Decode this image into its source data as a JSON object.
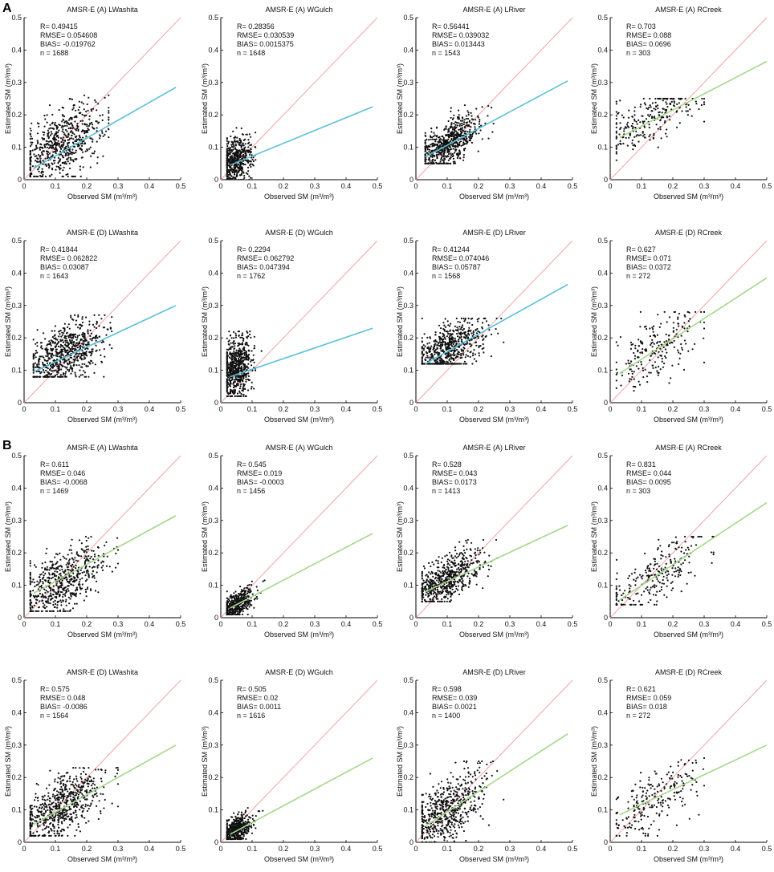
{
  "figure": {
    "panel_labels": [
      "A",
      "B"
    ],
    "colors": {
      "one_to_one": "#f2a3a3",
      "fit_cyan": "#5bc0d8",
      "fit_green": "#a5d78a",
      "points": "#111111"
    }
  },
  "chart_data": [
    {
      "type": "scatter",
      "group": "A",
      "title": "AMSR-E (A) LWashita",
      "xlabel": "Observed SM (m³/m³)",
      "ylabel": "Estimated SM (m³/m³)",
      "xlim": [
        0,
        0.5
      ],
      "ylim": [
        0,
        0.5
      ],
      "xticks": [
        "0",
        "0.1",
        "0.2",
        "0.3",
        "0.4",
        "0.5"
      ],
      "yticks": [
        "0",
        "0.1",
        "0.2",
        "0.3",
        "0.4",
        "0.5"
      ],
      "stats": [
        "R= 0.49415",
        "RMSE= 0.054608",
        "BIAS= -0.019762",
        "n = 1688"
      ],
      "fit_line": [
        [
          0.03,
          0.035
        ],
        [
          0.485,
          0.285
        ]
      ],
      "fit_color": "cyan",
      "cloud": {
        "x_center": 0.12,
        "x_spread": 0.07,
        "x_min": 0.02,
        "x_max": 0.27,
        "y_center": 0.11,
        "y_spread": 0.05,
        "y_min": 0.01,
        "y_max": 0.28,
        "slope": 0.45,
        "count": 650
      }
    },
    {
      "type": "scatter",
      "group": "A",
      "title": "AMSR-E (A) WGulch",
      "xlabel": "Observed SM (m³/m³)",
      "ylabel": "Estimated SM (m³/m³)",
      "xlim": [
        0,
        0.5
      ],
      "ylim": [
        0,
        0.5
      ],
      "xticks": [
        "0",
        "0.1",
        "0.2",
        "0.3",
        "0.4",
        "0.5"
      ],
      "yticks": [
        "0",
        "0.1",
        "0.2",
        "0.3",
        "0.4",
        "0.5"
      ],
      "stats": [
        "R= 0.28356",
        "RMSE= 0.030539",
        "BIAS= 0.0015375",
        "n = 1648"
      ],
      "fit_line": [
        [
          0.03,
          0.045
        ],
        [
          0.485,
          0.225
        ]
      ],
      "fit_color": "cyan",
      "cloud": {
        "x_center": 0.05,
        "x_spread": 0.025,
        "x_min": 0.02,
        "x_max": 0.12,
        "y_center": 0.06,
        "y_spread": 0.035,
        "y_min": 0.0,
        "y_max": 0.16,
        "slope": 0.3,
        "count": 500
      }
    },
    {
      "type": "scatter",
      "group": "A",
      "title": "AMSR-E (A) LRiver",
      "xlabel": "Observed SM (m³/m³)",
      "ylabel": "Estimated SM (m³/m³)",
      "xlim": [
        0,
        0.5
      ],
      "ylim": [
        0,
        0.5
      ],
      "xticks": [
        "0",
        "0.1",
        "0.2",
        "0.3",
        "0.4",
        "0.5"
      ],
      "yticks": [
        "0",
        "0.1",
        "0.2",
        "0.3",
        "0.4",
        "0.5"
      ],
      "stats": [
        "R= 0.56441",
        "RMSE= 0.039032",
        "BIAS= 0.013443",
        "n = 1543"
      ],
      "fit_line": [
        [
          0.03,
          0.07
        ],
        [
          0.485,
          0.305
        ]
      ],
      "fit_color": "cyan",
      "cloud": {
        "x_center": 0.1,
        "x_spread": 0.05,
        "x_min": 0.03,
        "x_max": 0.25,
        "y_center": 0.11,
        "y_spread": 0.035,
        "y_min": 0.05,
        "y_max": 0.25,
        "slope": 0.5,
        "count": 650
      }
    },
    {
      "type": "scatter",
      "group": "A",
      "title": "AMSR-E (A) RCreek",
      "xlabel": "Observed SM (m³/m³)",
      "ylabel": "Estimated SM (m³/m³)",
      "xlim": [
        0,
        0.5
      ],
      "ylim": [
        0,
        0.5
      ],
      "xticks": [
        "0",
        "0.1",
        "0.2",
        "0.3",
        "0.4",
        "0.5"
      ],
      "yticks": [
        "0",
        "0.1",
        "0.2",
        "0.3",
        "0.4",
        "0.5"
      ],
      "stats": [
        "R= 0.703",
        "RMSE= 0.088",
        "BIAS= 0.0696",
        "n = 303"
      ],
      "fit_line": [
        [
          0.03,
          0.13
        ],
        [
          0.5,
          0.365
        ]
      ],
      "fit_color": "green",
      "cloud": {
        "x_center": 0.13,
        "x_spread": 0.08,
        "x_min": 0.02,
        "x_max": 0.3,
        "y_center": 0.19,
        "y_spread": 0.04,
        "y_min": 0.06,
        "y_max": 0.25,
        "slope": 0.5,
        "count": 250
      }
    },
    {
      "type": "scatter",
      "group": "A",
      "title": "AMSR-E (D) LWashita",
      "xlabel": "Observed SM (m³/m³)",
      "ylabel": "Estimated SM (m³/m³)",
      "xlim": [
        0,
        0.5
      ],
      "ylim": [
        0,
        0.5
      ],
      "xticks": [
        "0",
        "0.1",
        "0.2",
        "0.3",
        "0.4",
        "0.5"
      ],
      "yticks": [
        "0",
        "0.1",
        "0.2",
        "0.3",
        "0.4",
        "0.5"
      ],
      "stats": [
        "R= 0.41844",
        "RMSE= 0.062822",
        "BIAS= 0.03087",
        "n = 1643"
      ],
      "fit_line": [
        [
          0.03,
          0.095
        ],
        [
          0.485,
          0.3
        ]
      ],
      "fit_color": "cyan",
      "cloud": {
        "x_center": 0.13,
        "x_spread": 0.065,
        "x_min": 0.03,
        "x_max": 0.28,
        "y_center": 0.15,
        "y_spread": 0.045,
        "y_min": 0.08,
        "y_max": 0.27,
        "slope": 0.45,
        "count": 700
      }
    },
    {
      "type": "scatter",
      "group": "A",
      "title": "AMSR-E (D) WGulch",
      "xlabel": "Observed SM (m³/m³)",
      "ylabel": "Estimated SM (m³/m³)",
      "xlim": [
        0,
        0.5
      ],
      "ylim": [
        0,
        0.5
      ],
      "xticks": [
        "0",
        "0.1",
        "0.2",
        "0.3",
        "0.4",
        "0.5"
      ],
      "yticks": [
        "0",
        "0.1",
        "0.2",
        "0.3",
        "0.4",
        "0.5"
      ],
      "stats": [
        "R= 0.2294",
        "RMSE= 0.062792",
        "BIAS= 0.047394",
        "n = 1762"
      ],
      "fit_line": [
        [
          0.03,
          0.08
        ],
        [
          0.485,
          0.23
        ]
      ],
      "fit_color": "cyan",
      "cloud": {
        "x_center": 0.05,
        "x_spread": 0.025,
        "x_min": 0.02,
        "x_max": 0.13,
        "y_center": 0.11,
        "y_spread": 0.045,
        "y_min": 0.02,
        "y_max": 0.22,
        "slope": 0.3,
        "count": 650
      }
    },
    {
      "type": "scatter",
      "group": "A",
      "title": "AMSR-E (D) LRiver",
      "xlabel": "Observed SM (m³/m³)",
      "ylabel": "Estimated SM (m³/m³)",
      "xlim": [
        0,
        0.5
      ],
      "ylim": [
        0,
        0.5
      ],
      "xticks": [
        "0",
        "0.1",
        "0.2",
        "0.3",
        "0.4",
        "0.5"
      ],
      "yticks": [
        "0",
        "0.1",
        "0.2",
        "0.3",
        "0.4",
        "0.5"
      ],
      "stats": [
        "R= 0.41244",
        "RMSE= 0.074046",
        "BIAS= 0.05787",
        "n = 1568"
      ],
      "fit_line": [
        [
          0.03,
          0.12
        ],
        [
          0.485,
          0.365
        ]
      ],
      "fit_color": "cyan",
      "cloud": {
        "x_center": 0.1,
        "x_spread": 0.06,
        "x_min": 0.02,
        "x_max": 0.28,
        "y_center": 0.16,
        "y_spread": 0.04,
        "y_min": 0.12,
        "y_max": 0.26,
        "slope": 0.45,
        "count": 650
      }
    },
    {
      "type": "scatter",
      "group": "A",
      "title": "AMSR-E (D) RCreek",
      "xlabel": "Observed SM (m³/m³)",
      "ylabel": "Estimated SM (m³/m³)",
      "xlim": [
        0,
        0.5
      ],
      "ylim": [
        0,
        0.5
      ],
      "xticks": [
        "0",
        "0.1",
        "0.2",
        "0.3",
        "0.4",
        "0.5"
      ],
      "yticks": [
        "0",
        "0.1",
        "0.2",
        "0.3",
        "0.4",
        "0.5"
      ],
      "stats": [
        "R= 0.627",
        "RMSE= 0.071",
        "BIAS= 0.0372",
        "n = 272"
      ],
      "fit_line": [
        [
          0.03,
          0.09
        ],
        [
          0.5,
          0.385
        ]
      ],
      "fit_color": "green",
      "cloud": {
        "x_center": 0.14,
        "x_spread": 0.08,
        "x_min": 0.02,
        "x_max": 0.3,
        "y_center": 0.16,
        "y_spread": 0.05,
        "y_min": 0.0,
        "y_max": 0.28,
        "slope": 0.55,
        "count": 230
      }
    },
    {
      "type": "scatter",
      "group": "B",
      "title": "AMSR-E (A) LWashita",
      "xlabel": "Observed SM (m³/m³)",
      "ylabel": "Estimated SM (m³/m³)",
      "xlim": [
        0,
        0.5
      ],
      "ylim": [
        0,
        0.5
      ],
      "xticks": [
        "0",
        "0.1",
        "0.2",
        "0.3",
        "0.4",
        "0.5"
      ],
      "yticks": [
        "0",
        "0.1",
        "0.2",
        "0.3",
        "0.4",
        "0.5"
      ],
      "stats": [
        "R= 0.611",
        "RMSE= 0.046",
        "BIAS= -0.0068",
        "n = 1469"
      ],
      "fit_line": [
        [
          0.03,
          0.075
        ],
        [
          0.485,
          0.315
        ]
      ],
      "fit_color": "green",
      "cloud": {
        "x_center": 0.12,
        "x_spread": 0.07,
        "x_min": 0.02,
        "x_max": 0.3,
        "y_center": 0.11,
        "y_spread": 0.045,
        "y_min": 0.02,
        "y_max": 0.25,
        "slope": 0.5,
        "count": 600
      }
    },
    {
      "type": "scatter",
      "group": "B",
      "title": "AMSR-E (A) WGulch",
      "xlabel": "Observed SM (m³/m³)",
      "ylabel": "Estimated SM (m³/m³)",
      "xlim": [
        0,
        0.5
      ],
      "ylim": [
        0,
        0.5
      ],
      "xticks": [
        "0",
        "0.1",
        "0.2",
        "0.3",
        "0.4",
        "0.5"
      ],
      "yticks": [
        "0",
        "0.1",
        "0.2",
        "0.3",
        "0.4",
        "0.5"
      ],
      "stats": [
        "R= 0.545",
        "RMSE= 0.019",
        "BIAS= -0.0003",
        "n = 1456"
      ],
      "fit_line": [
        [
          0.03,
          0.03
        ],
        [
          0.485,
          0.26
        ]
      ],
      "fit_color": "green",
      "cloud": {
        "x_center": 0.05,
        "x_spread": 0.025,
        "x_min": 0.02,
        "x_max": 0.14,
        "y_center": 0.04,
        "y_spread": 0.02,
        "y_min": 0.01,
        "y_max": 0.2,
        "slope": 0.5,
        "count": 450
      }
    },
    {
      "type": "scatter",
      "group": "B",
      "title": "AMSR-E (A) LRiver",
      "xlabel": "Observed SM (m³/m³)",
      "ylabel": "Estimated SM (m³/m³)",
      "xlim": [
        0,
        0.5
      ],
      "ylim": [
        0,
        0.5
      ],
      "xticks": [
        "0",
        "0.1",
        "0.2",
        "0.3",
        "0.4",
        "0.5"
      ],
      "yticks": [
        "0",
        "0.1",
        "0.2",
        "0.3",
        "0.4",
        "0.5"
      ],
      "stats": [
        "R= 0.528",
        "RMSE= 0.043",
        "BIAS= 0.0173",
        "n = 1413"
      ],
      "fit_line": [
        [
          0.03,
          0.08
        ],
        [
          0.485,
          0.285
        ]
      ],
      "fit_color": "green",
      "cloud": {
        "x_center": 0.1,
        "x_spread": 0.055,
        "x_min": 0.02,
        "x_max": 0.26,
        "y_center": 0.12,
        "y_spread": 0.035,
        "y_min": 0.05,
        "y_max": 0.24,
        "slope": 0.5,
        "count": 600
      }
    },
    {
      "type": "scatter",
      "group": "B",
      "title": "AMSR-E (A) RCreek",
      "xlabel": "Observed SM (m³/m³)",
      "ylabel": "Estimated SM (m³/m³)",
      "xlim": [
        0,
        0.5
      ],
      "ylim": [
        0,
        0.5
      ],
      "xticks": [
        "0",
        "0.1",
        "0.2",
        "0.3",
        "0.4",
        "0.5"
      ],
      "yticks": [
        "0",
        "0.1",
        "0.2",
        "0.3",
        "0.4",
        "0.5"
      ],
      "stats": [
        "R= 0.831",
        "RMSE= 0.044",
        "BIAS= 0.0095",
        "n = 303"
      ],
      "fit_line": [
        [
          0.03,
          0.055
        ],
        [
          0.5,
          0.355
        ]
      ],
      "fit_color": "green",
      "cloud": {
        "x_center": 0.14,
        "x_spread": 0.08,
        "x_min": 0.02,
        "x_max": 0.33,
        "y_center": 0.13,
        "y_spread": 0.04,
        "y_min": 0.04,
        "y_max": 0.25,
        "slope": 0.65,
        "count": 250
      }
    },
    {
      "type": "scatter",
      "group": "B",
      "title": "AMSR-E (D) LWashita",
      "xlabel": "Observed SM (m³/m³)",
      "ylabel": "Estimated SM (m³/m³)",
      "xlim": [
        0,
        0.5
      ],
      "ylim": [
        0,
        0.5
      ],
      "xticks": [
        "0",
        "0.1",
        "0.2",
        "0.3",
        "0.4",
        "0.5"
      ],
      "yticks": [
        "0",
        "0.1",
        "0.2",
        "0.3",
        "0.4",
        "0.5"
      ],
      "stats": [
        "R= 0.575",
        "RMSE= 0.048",
        "BIAS= -0.0086",
        "n = 1564"
      ],
      "fit_line": [
        [
          0.03,
          0.055
        ],
        [
          0.485,
          0.3
        ]
      ],
      "fit_color": "green",
      "cloud": {
        "x_center": 0.12,
        "x_spread": 0.065,
        "x_min": 0.02,
        "x_max": 0.3,
        "y_center": 0.11,
        "y_spread": 0.045,
        "y_min": 0.02,
        "y_max": 0.23,
        "slope": 0.55,
        "count": 650
      }
    },
    {
      "type": "scatter",
      "group": "B",
      "title": "AMSR-E (D) WGulch",
      "xlabel": "Observed SM (m³/m³)",
      "ylabel": "Estimated SM (m³/m³)",
      "xlim": [
        0,
        0.5
      ],
      "ylim": [
        0,
        0.5
      ],
      "xticks": [
        "0",
        "0.1",
        "0.2",
        "0.3",
        "0.4",
        "0.5"
      ],
      "yticks": [
        "0",
        "0.1",
        "0.2",
        "0.3",
        "0.4",
        "0.5"
      ],
      "stats": [
        "R= 0.505",
        "RMSE= 0.02",
        "BIAS= 0.0011",
        "n = 1616"
      ],
      "fit_line": [
        [
          0.03,
          0.025
        ],
        [
          0.485,
          0.26
        ]
      ],
      "fit_color": "green",
      "cloud": {
        "x_center": 0.05,
        "x_spread": 0.025,
        "x_min": 0.02,
        "x_max": 0.2,
        "y_center": 0.04,
        "y_spread": 0.02,
        "y_min": 0.01,
        "y_max": 0.15,
        "slope": 0.5,
        "count": 450
      }
    },
    {
      "type": "scatter",
      "group": "B",
      "title": "AMSR-E (D) LRiver",
      "xlabel": "Observed SM (m³/m³)",
      "ylabel": "Estimated SM (m³/m³)",
      "xlim": [
        0,
        0.5
      ],
      "ylim": [
        0,
        0.5
      ],
      "xticks": [
        "0",
        "0.1",
        "0.2",
        "0.3",
        "0.4",
        "0.5"
      ],
      "yticks": [
        "0",
        "0.1",
        "0.2",
        "0.3",
        "0.4",
        "0.5"
      ],
      "stats": [
        "R= 0.598",
        "RMSE= 0.039",
        "BIAS= 0.0021",
        "n = 1400"
      ],
      "fit_line": [
        [
          0.03,
          0.05
        ],
        [
          0.485,
          0.335
        ]
      ],
      "fit_color": "green",
      "cloud": {
        "x_center": 0.1,
        "x_spread": 0.06,
        "x_min": 0.02,
        "x_max": 0.28,
        "y_center": 0.1,
        "y_spread": 0.045,
        "y_min": 0.0,
        "y_max": 0.25,
        "slope": 0.6,
        "count": 600
      }
    },
    {
      "type": "scatter",
      "group": "B",
      "title": "AMSR-E (D) RCreek",
      "xlabel": "Observed SM (m³/m³)",
      "ylabel": "Estimated SM (m³/m³)",
      "xlim": [
        0,
        0.5
      ],
      "ylim": [
        0,
        0.5
      ],
      "xticks": [
        "0",
        "0.1",
        "0.2",
        "0.3",
        "0.4",
        "0.5"
      ],
      "yticks": [
        "0",
        "0.1",
        "0.2",
        "0.3",
        "0.4",
        "0.5"
      ],
      "stats": [
        "R= 0.621",
        "RMSE= 0.059",
        "BIAS= 0.018",
        "n = 272"
      ],
      "fit_line": [
        [
          0.03,
          0.085
        ],
        [
          0.5,
          0.3
        ]
      ],
      "fit_color": "green",
      "cloud": {
        "x_center": 0.14,
        "x_spread": 0.08,
        "x_min": 0.02,
        "x_max": 0.3,
        "y_center": 0.13,
        "y_spread": 0.045,
        "y_min": 0.02,
        "y_max": 0.26,
        "slope": 0.5,
        "count": 230
      }
    }
  ]
}
